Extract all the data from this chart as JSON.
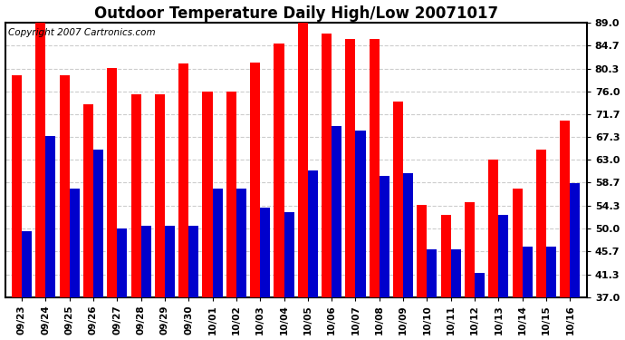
{
  "title": "Outdoor Temperature Daily High/Low 20071017",
  "copyright": "Copyright 2007 Cartronics.com",
  "dates": [
    "09/23",
    "09/24",
    "09/25",
    "09/26",
    "09/27",
    "09/28",
    "09/29",
    "09/30",
    "10/01",
    "10/02",
    "10/03",
    "10/04",
    "10/05",
    "10/06",
    "10/07",
    "10/08",
    "10/09",
    "10/10",
    "10/11",
    "10/12",
    "10/13",
    "10/14",
    "10/15",
    "10/16"
  ],
  "highs": [
    79.0,
    89.0,
    79.0,
    73.5,
    80.5,
    75.5,
    75.5,
    81.3,
    76.0,
    76.0,
    81.5,
    85.0,
    89.5,
    87.0,
    86.0,
    86.0,
    74.0,
    54.5,
    52.5,
    55.0,
    63.0,
    57.5,
    65.0,
    70.5
  ],
  "lows": [
    49.5,
    67.5,
    57.5,
    65.0,
    50.0,
    50.5,
    50.5,
    50.5,
    57.5,
    57.5,
    54.0,
    53.0,
    61.0,
    69.5,
    68.5,
    60.0,
    60.5,
    46.0,
    46.0,
    41.5,
    52.5,
    46.5,
    46.5,
    58.5
  ],
  "yticks": [
    37.0,
    41.3,
    45.7,
    50.0,
    54.3,
    58.7,
    63.0,
    67.3,
    71.7,
    76.0,
    80.3,
    84.7,
    89.0
  ],
  "ymin": 37.0,
  "ymax": 89.0,
  "high_color": "#ff0000",
  "low_color": "#0000cc",
  "bg_color": "#ffffff",
  "grid_color": "#cccccc",
  "bar_width": 0.42,
  "title_fontsize": 12,
  "copyright_fontsize": 7.5
}
